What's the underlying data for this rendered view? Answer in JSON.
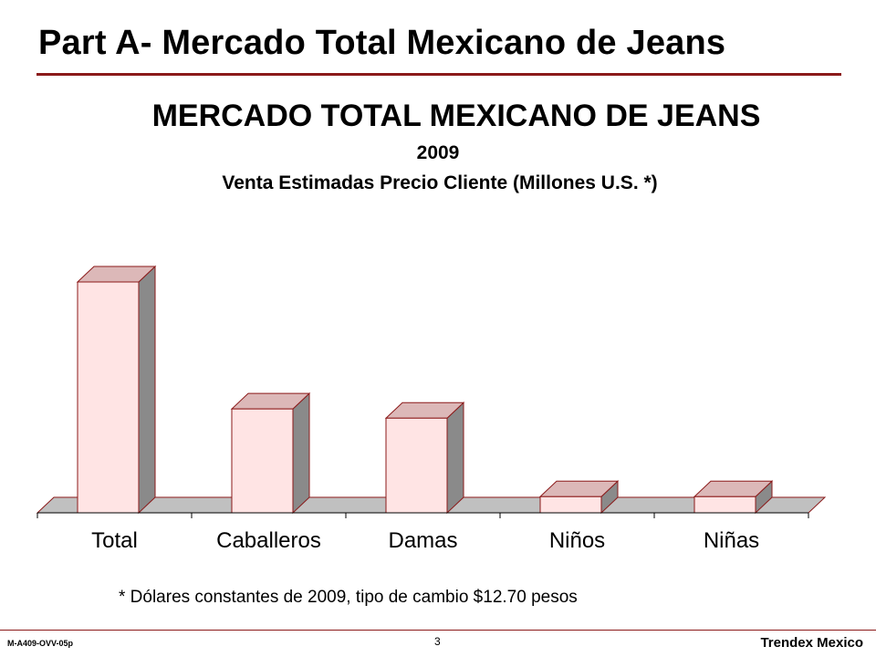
{
  "slide": {
    "title": "Part A- Mercado Total Mexicano de Jeans",
    "footnote": "* Dólares constantes de 2009, tipo de cambio $12.70 pesos",
    "doc_code": "M-A409-OVV-05p",
    "page_number": "3",
    "brand": "Trendex Mexico"
  },
  "colors": {
    "bar_front": "#ffe4e4",
    "bar_side": "#8a8a8a",
    "bar_top": "#dcb8b8",
    "bar_outline": "#8b1a1a",
    "floor": "#c0c0c0",
    "accent_rule": "#8b1a1a"
  },
  "chart_data": {
    "type": "bar",
    "style": "3d",
    "title": "MERCADO TOTAL MEXICANO DE JEANS",
    "subtitle": "2009",
    "subtitle2": "Venta Estimadas Precio Cliente (Millones U.S. *)",
    "categories": [
      "Total",
      "Caballeros",
      "Damas",
      "Niños",
      "Niñas"
    ],
    "values": [
      100,
      45,
      41,
      7,
      7
    ],
    "ylim": [
      0,
      100
    ],
    "grid": false,
    "legend": "none"
  }
}
